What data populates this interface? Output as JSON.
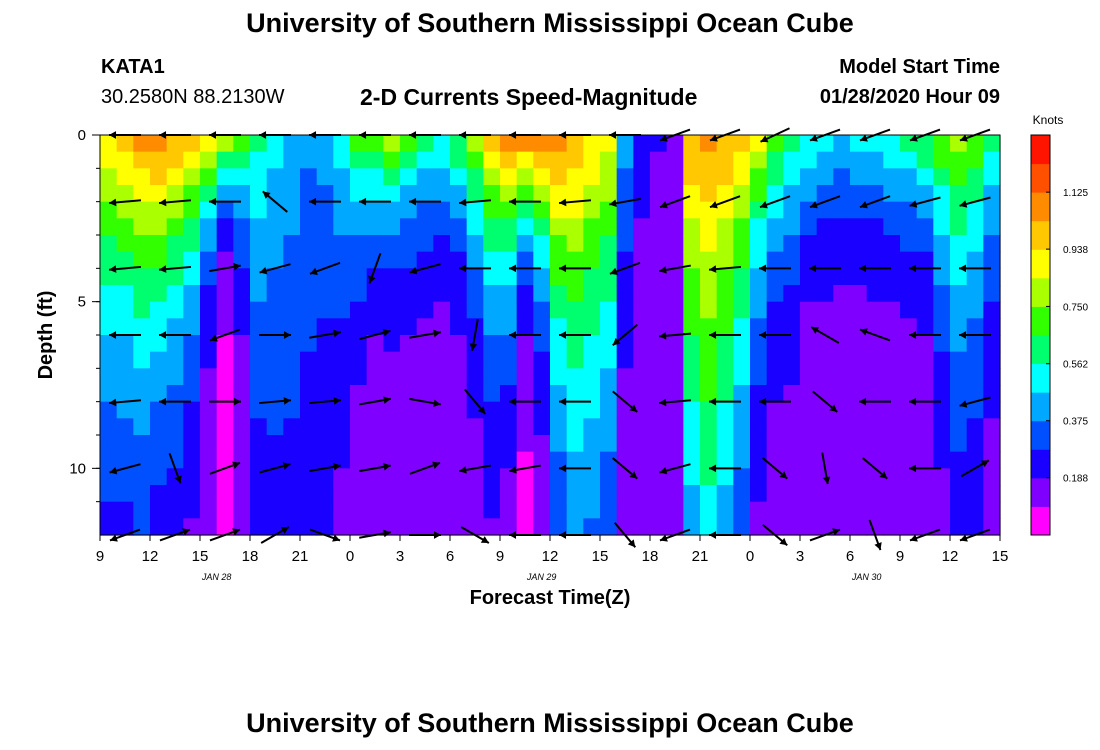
{
  "header": {
    "title": "University of Southern Mississippi Ocean Cube",
    "station_id": "KATA1",
    "station_coords": "30.2580N 88.2130W",
    "chart_title": "2-D Currents Speed-Magnitude",
    "model_start_label": "Model Start Time",
    "model_start_value": "01/28/2020 Hour 09"
  },
  "footer": {
    "title": "University of Southern Mississippi Ocean Cube"
  },
  "chart_data": {
    "type": "heatmap",
    "title": "2-D Currents Speed-Magnitude",
    "xlabel": "Forecast Time(Z)",
    "ylabel": "Depth (ft)",
    "x_range_hours": [
      0,
      54
    ],
    "y_range_ft": [
      0,
      12
    ],
    "x_ticks": [
      {
        "hour": 0,
        "label": "9"
      },
      {
        "hour": 3,
        "label": "12"
      },
      {
        "hour": 6,
        "label": "15"
      },
      {
        "hour": 9,
        "label": "18"
      },
      {
        "hour": 12,
        "label": "21"
      },
      {
        "hour": 15,
        "label": "0"
      },
      {
        "hour": 18,
        "label": "3"
      },
      {
        "hour": 21,
        "label": "6"
      },
      {
        "hour": 24,
        "label": "9"
      },
      {
        "hour": 27,
        "label": "12"
      },
      {
        "hour": 30,
        "label": "15"
      },
      {
        "hour": 33,
        "label": "18"
      },
      {
        "hour": 36,
        "label": "21"
      },
      {
        "hour": 39,
        "label": "0"
      },
      {
        "hour": 42,
        "label": "3"
      },
      {
        "hour": 45,
        "label": "6"
      },
      {
        "hour": 48,
        "label": "9"
      },
      {
        "hour": 51,
        "label": "12"
      },
      {
        "hour": 54,
        "label": "15"
      }
    ],
    "date_labels": [
      {
        "hour": 7,
        "label": "JAN  28"
      },
      {
        "hour": 26.5,
        "label": "JAN  29"
      },
      {
        "hour": 46,
        "label": "JAN  30"
      }
    ],
    "y_ticks": [
      {
        "depth": 0,
        "label": "0"
      },
      {
        "depth": 5,
        "label": "5"
      },
      {
        "depth": 10,
        "label": "10"
      }
    ],
    "colorbar": {
      "unit_label": "Knots",
      "min": 0,
      "max": 1.3125,
      "ticks": [
        {
          "value": 0.188,
          "label": "0.188"
        },
        {
          "value": 0.375,
          "label": "0.375"
        },
        {
          "value": 0.562,
          "label": "0.562"
        },
        {
          "value": 0.75,
          "label": "0.750"
        },
        {
          "value": 0.938,
          "label": "0.938"
        },
        {
          "value": 1.125,
          "label": "1.125"
        }
      ],
      "colors": [
        "#ff00ff",
        "#7f00ff",
        "#1a00ff",
        "#0050ff",
        "#00a8ff",
        "#00ffff",
        "#00ff6e",
        "#32ff00",
        "#aaff00",
        "#ffff00",
        "#ffc800",
        "#ff8c00",
        "#ff5000",
        "#ff1400"
      ]
    },
    "speed_profile_knots": {
      "hours": [
        0,
        1,
        2,
        3,
        4,
        5,
        6,
        7,
        8,
        9,
        10,
        11,
        12,
        13,
        14,
        15,
        16,
        17,
        18,
        19,
        20,
        21,
        22,
        23,
        24,
        25,
        26,
        27,
        28,
        29,
        30,
        31,
        32,
        33,
        34,
        35,
        36,
        37,
        38,
        39,
        40,
        41,
        42,
        43,
        44,
        45,
        46,
        47,
        48,
        49,
        50,
        51,
        52,
        53,
        54
      ],
      "surface": [
        0.95,
        1.0,
        1.08,
        1.15,
        1.05,
        1.0,
        0.98,
        0.92,
        0.75,
        0.6,
        0.5,
        0.45,
        0.4,
        0.42,
        0.55,
        0.7,
        0.8,
        0.82,
        0.75,
        0.65,
        0.6,
        0.7,
        0.85,
        1.0,
        1.1,
        1.15,
        1.15,
        1.12,
        1.05,
        0.95,
        0.9,
        0.45,
        0.25,
        0.2,
        0.15,
        1.05,
        1.08,
        1.05,
        1.0,
        0.9,
        0.75,
        0.65,
        0.6,
        0.55,
        0.5,
        0.52,
        0.55,
        0.6,
        0.65,
        0.7,
        0.75,
        0.8,
        0.72,
        0.6,
        0.5
      ],
      "bottom": [
        0.1,
        0.1,
        0.1,
        0.1,
        0.1,
        0.1,
        0.1,
        0.05,
        0.1,
        0.12,
        0.15,
        0.15,
        0.15,
        0.12,
        0.1,
        0.1,
        0.1,
        0.1,
        0.1,
        0.1,
        0.1,
        0.1,
        0.1,
        0.1,
        0.05,
        0.05,
        0.08,
        0.12,
        0.15,
        0.15,
        0.15,
        0.1,
        0.12,
        0.12,
        0.1,
        0.15,
        0.25,
        0.15,
        0.12,
        0.1,
        0.1,
        0.1,
        0.1,
        0.1,
        0.1,
        0.1,
        0.1,
        0.1,
        0.1,
        0.1,
        0.1,
        0.1,
        0.1,
        0.1,
        0.1
      ],
      "decay_depth_ft": [
        7,
        7,
        7,
        6,
        6,
        5,
        3,
        2,
        3,
        8,
        9,
        10,
        10,
        9,
        6,
        4,
        3,
        3,
        3,
        3,
        3,
        3,
        4,
        5,
        5,
        3,
        4,
        7,
        9,
        9,
        8,
        5,
        4,
        4,
        4,
        10,
        11,
        10,
        8,
        5,
        4,
        4,
        3,
        3,
        3,
        3,
        3,
        3,
        3,
        3,
        5,
        7,
        7,
        5,
        4
      ]
    },
    "vector_hours": [
      1.5,
      4.5,
      7.5,
      10.5,
      13.5,
      16.5,
      19.5,
      22.5,
      25.5,
      28.5,
      31.5,
      34.5,
      37.5,
      40.5,
      43.5,
      46.5,
      49.5,
      52.5
    ],
    "vector_depths_ft": [
      0,
      2,
      4,
      6,
      8,
      10,
      12
    ],
    "vectors_deg": [
      [
        180,
        180,
        180,
        180,
        180,
        180,
        180,
        180,
        180,
        180,
        180,
        200,
        200,
        205,
        200,
        200,
        200,
        200
      ],
      [
        185,
        185,
        180,
        140,
        180,
        180,
        180,
        185,
        180,
        185,
        190,
        200,
        200,
        200,
        200,
        200,
        195,
        195
      ],
      [
        185,
        185,
        10,
        195,
        200,
        250,
        195,
        180,
        180,
        180,
        200,
        190,
        185,
        180,
        180,
        180,
        180,
        180
      ],
      [
        180,
        180,
        200,
        0,
        10,
        15,
        10,
        260,
        180,
        180,
        220,
        185,
        180,
        180,
        150,
        160,
        180,
        180
      ],
      [
        185,
        180,
        0,
        5,
        5,
        10,
        350,
        310,
        180,
        180,
        320,
        185,
        180,
        180,
        320,
        180,
        180,
        195
      ],
      [
        195,
        290,
        20,
        15,
        10,
        10,
        20,
        190,
        190,
        180,
        320,
        195,
        180,
        320,
        280,
        320,
        180,
        30
      ],
      [
        200,
        20,
        20,
        30,
        340,
        10,
        0,
        330,
        180,
        180,
        310,
        200,
        180,
        320,
        20,
        290,
        200,
        200
      ]
    ]
  }
}
